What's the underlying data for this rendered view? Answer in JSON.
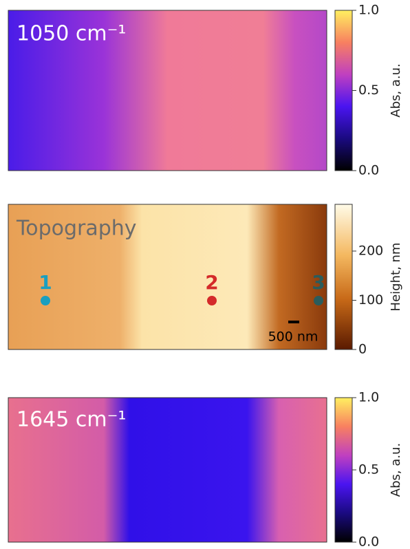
{
  "chart_data": [
    {
      "type": "image",
      "label": "1050 cm⁻¹",
      "colorbar_label": "Abs, a.u.",
      "clim": [
        0,
        1
      ],
      "cticks": [
        {
          "value": 0,
          "label": "0.0"
        },
        0.5,
        {
          "value": 1,
          "label": "1.0"
        }
      ]
    },
    {
      "type": "image",
      "label": "Topography",
      "colorbar_label": "Height, nm",
      "clim": [
        0,
        295
      ],
      "cticks": [
        0,
        100,
        200
      ],
      "scale_bar": "500 nm",
      "points": [
        {
          "name": "1",
          "color": "#1a9fc0"
        },
        {
          "name": "2",
          "color": "#d42a2a"
        },
        {
          "name": "3",
          "color": "#2b5c5c"
        }
      ]
    },
    {
      "type": "image",
      "label": "1645 cm⁻¹",
      "colorbar_label": "Abs, a.u.",
      "clim": [
        0,
        1
      ],
      "cticks": [
        {
          "value": 0,
          "label": "0.0"
        },
        0.5,
        {
          "value": 1,
          "label": "1.0"
        }
      ]
    }
  ]
}
